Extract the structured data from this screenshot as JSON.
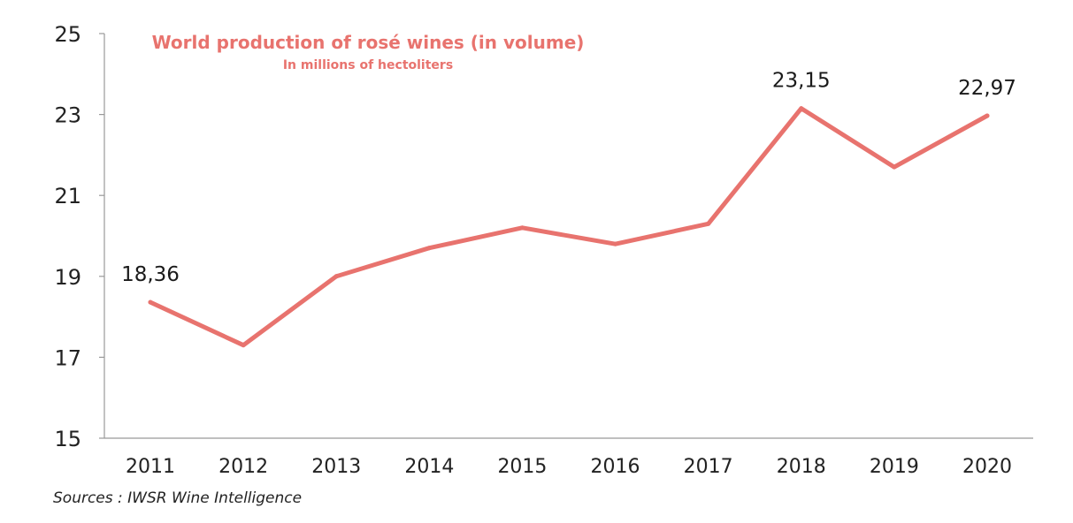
{
  "chart_data": {
    "type": "line",
    "title": "World production of rosé wines (in volume)",
    "subtitle": "In millions of hectoliters",
    "xlabel": "",
    "ylabel": "",
    "categories": [
      "2011",
      "2012",
      "2013",
      "2014",
      "2015",
      "2016",
      "2017",
      "2018",
      "2019",
      "2020"
    ],
    "series": [
      {
        "name": "World production of rosé wines",
        "values": [
          18.36,
          17.3,
          19.0,
          19.7,
          20.2,
          19.8,
          20.3,
          23.15,
          21.7,
          22.97
        ]
      }
    ],
    "ylim": [
      15,
      25
    ],
    "yticks": [
      "15",
      "17",
      "19",
      "21",
      "23",
      "25"
    ],
    "data_labels": [
      {
        "index": 0,
        "text": "18,36"
      },
      {
        "index": 7,
        "text": "23,15"
      },
      {
        "index": 9,
        "text": "22,97"
      }
    ],
    "grid": false,
    "line_color": "#e8736e",
    "title_color": "#e8736e"
  },
  "source": "Sources : IWSR Wine Intelligence"
}
